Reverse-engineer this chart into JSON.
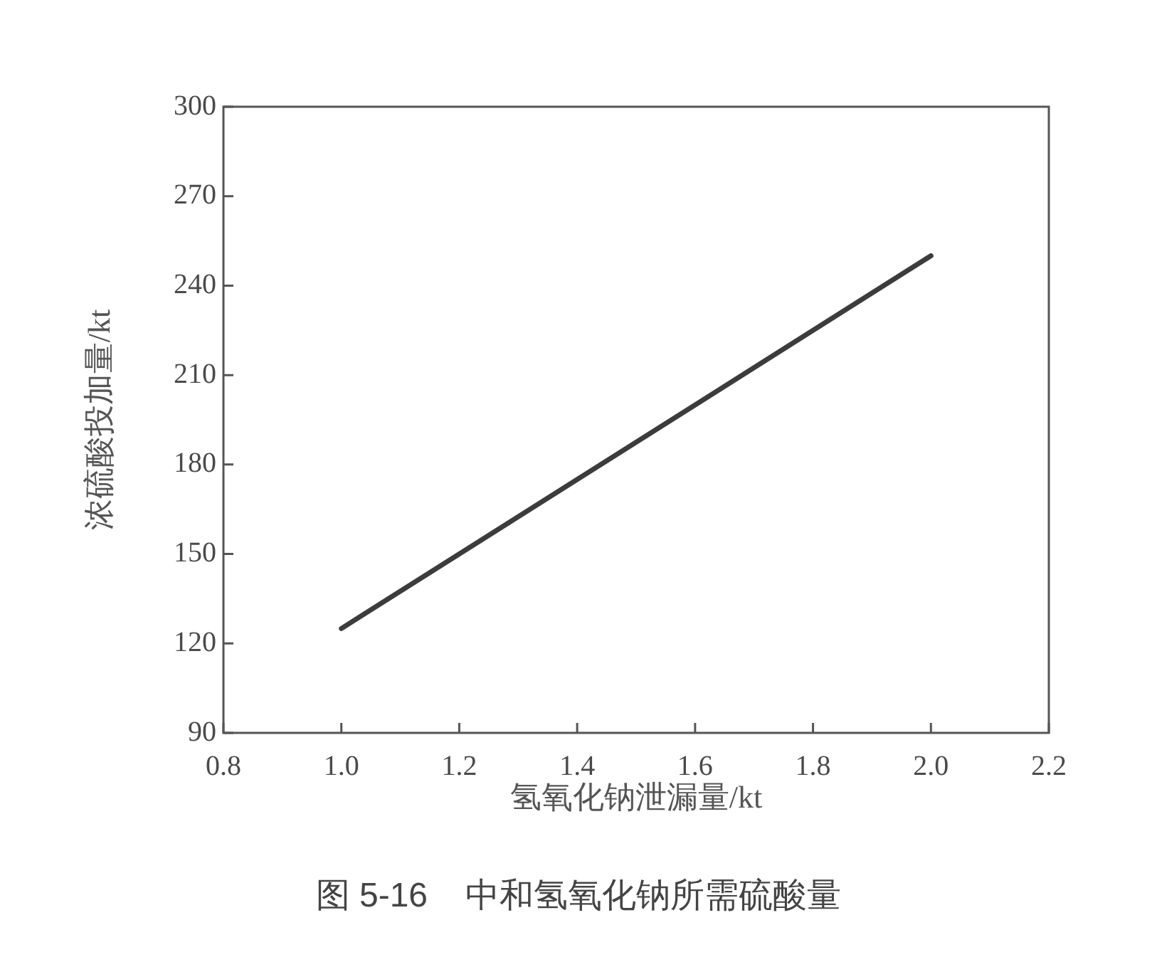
{
  "chart_data": {
    "type": "line",
    "title": "图 5-16    中和氢氧化钠所需硫酸量",
    "xlabel": "氢氧化钠泄漏量/kt",
    "ylabel": "浓硫酸投加量/kt",
    "x": [
      1.0,
      2.0
    ],
    "series": [
      {
        "color": "#3c3c3c",
        "values": [
          125,
          250
        ]
      }
    ],
    "xlim": [
      0.8,
      2.2
    ],
    "xticks": [
      0.8,
      {
        "value": 1,
        "label": "1.0"
      },
      1.2,
      1.4,
      1.6,
      1.8,
      {
        "value": 2,
        "label": "2.0"
      },
      2.2
    ],
    "ylim": [
      90,
      300
    ],
    "yticks": [
      90,
      120,
      150,
      180,
      210,
      240,
      270,
      300
    ],
    "marker": "none"
  }
}
